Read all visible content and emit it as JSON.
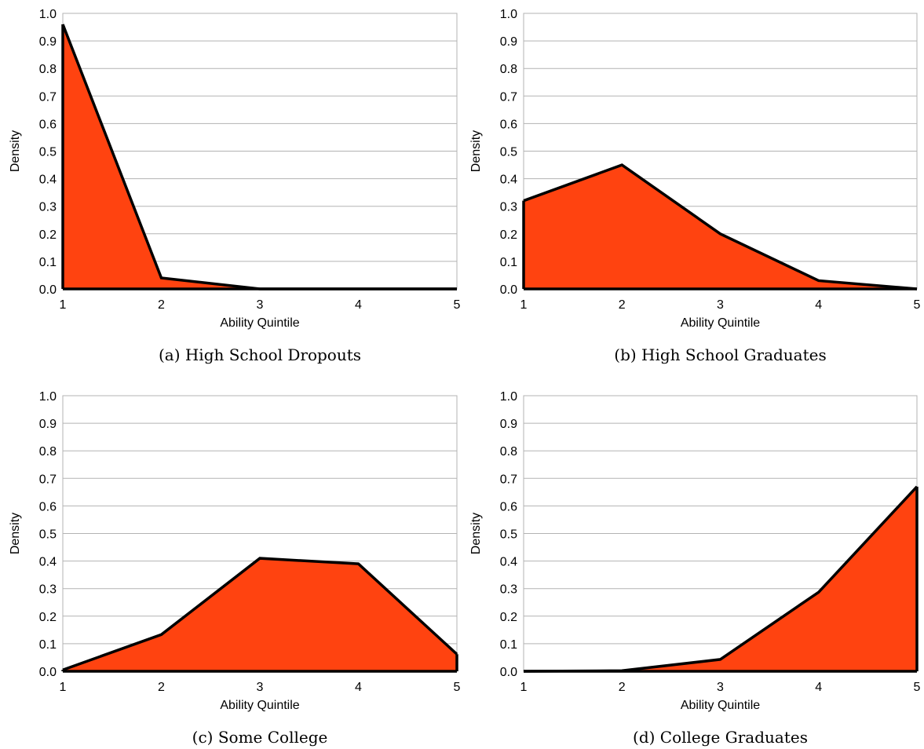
{
  "colors": {
    "fill": "#ff4310",
    "line": "#000000",
    "grid": "#b3b3b3"
  },
  "chart_data": [
    {
      "type": "area",
      "caption": "(a) High School Dropouts",
      "xlabel": "Ability Quintile",
      "ylabel": "Density",
      "x": [
        1,
        2,
        3,
        4,
        5
      ],
      "xticks": [
        "1",
        "2",
        "3",
        "4",
        "5"
      ],
      "yticks": [
        "0.0",
        "0.1",
        "0.2",
        "0.3",
        "0.4",
        "0.5",
        "0.6",
        "0.7",
        "0.8",
        "0.9",
        "1.0"
      ],
      "xlim": [
        1,
        5
      ],
      "ylim": [
        0,
        1
      ],
      "grid": true,
      "series": [
        {
          "values": [
            0.96,
            0.04,
            0.0,
            0.0,
            0.0
          ]
        }
      ]
    },
    {
      "type": "area",
      "caption": "(b) High School Graduates",
      "xlabel": "Ability Quintile",
      "ylabel": "Density",
      "x": [
        1,
        2,
        3,
        4,
        5
      ],
      "xticks": [
        "1",
        "2",
        "3",
        "4",
        "5"
      ],
      "yticks": [
        "0.0",
        "0.1",
        "0.2",
        "0.3",
        "0.4",
        "0.5",
        "0.6",
        "0.7",
        "0.8",
        "0.9",
        "1.0"
      ],
      "xlim": [
        1,
        5
      ],
      "ylim": [
        0,
        1
      ],
      "grid": true,
      "series": [
        {
          "values": [
            0.32,
            0.45,
            0.2,
            0.03,
            0.0
          ]
        }
      ]
    },
    {
      "type": "area",
      "caption": "(c) Some College",
      "xlabel": "Ability Quintile",
      "ylabel": "Density",
      "x": [
        1,
        2,
        3,
        4,
        5
      ],
      "xticks": [
        "1",
        "2",
        "3",
        "4",
        "5"
      ],
      "yticks": [
        "0.0",
        "0.1",
        "0.2",
        "0.3",
        "0.4",
        "0.5",
        "0.6",
        "0.7",
        "0.8",
        "0.9",
        "1.0"
      ],
      "xlim": [
        1,
        5
      ],
      "ylim": [
        0,
        1
      ],
      "grid": true,
      "series": [
        {
          "values": [
            0.005,
            0.133,
            0.41,
            0.39,
            0.062
          ]
        }
      ]
    },
    {
      "type": "area",
      "caption": "(d) College Graduates",
      "xlabel": "Ability Quintile",
      "ylabel": "Density",
      "x": [
        1,
        2,
        3,
        4,
        5
      ],
      "xticks": [
        "1",
        "2",
        "3",
        "4",
        "5"
      ],
      "yticks": [
        "0.0",
        "0.1",
        "0.2",
        "0.3",
        "0.4",
        "0.5",
        "0.6",
        "0.7",
        "0.8",
        "0.9",
        "1.0"
      ],
      "xlim": [
        1,
        5
      ],
      "ylim": [
        0,
        1
      ],
      "grid": true,
      "series": [
        {
          "values": [
            0.0,
            0.002,
            0.043,
            0.287,
            0.67
          ]
        }
      ]
    }
  ]
}
